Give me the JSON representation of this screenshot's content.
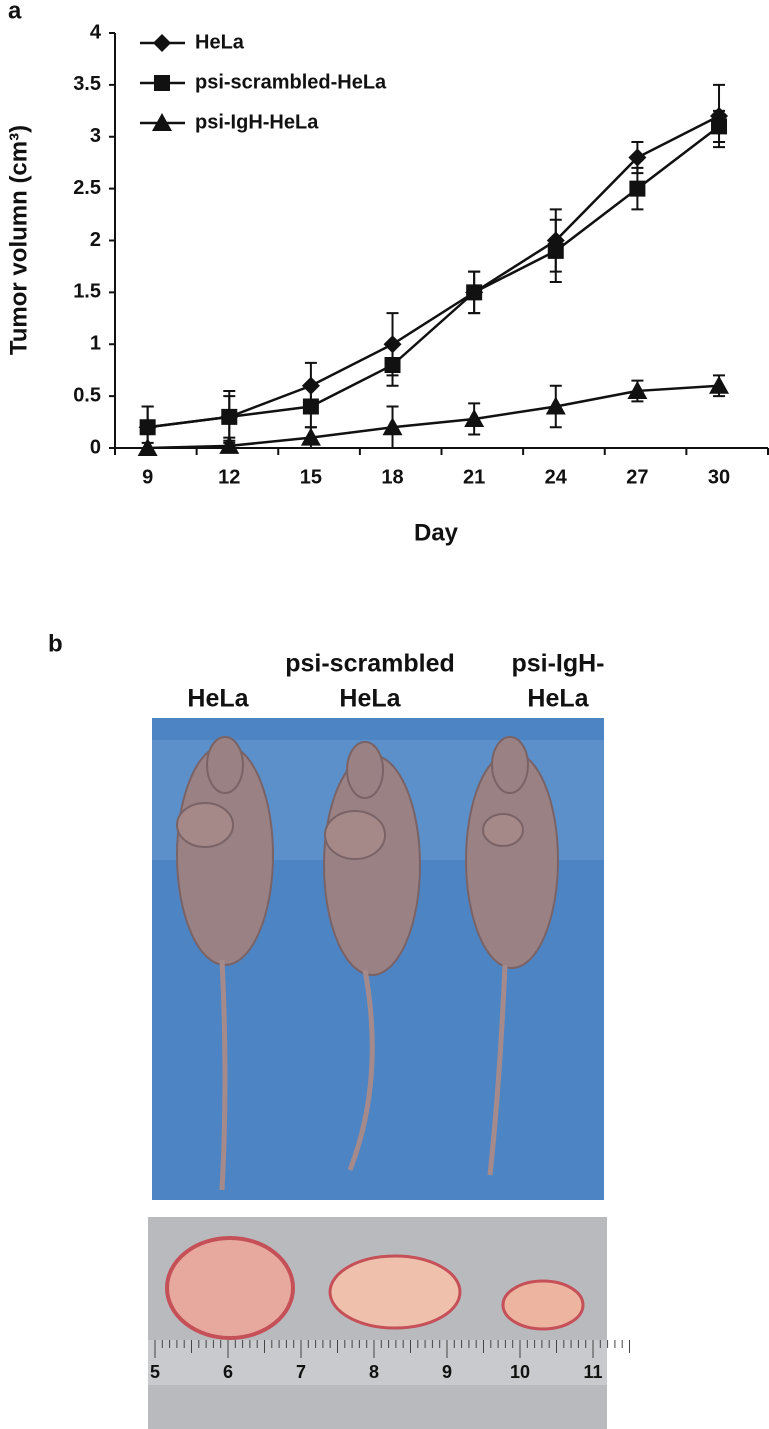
{
  "chart_data": {
    "type": "line",
    "title": "a",
    "x_label": "Day",
    "y_label": "Tumor volumn (cm³)",
    "categories": [
      "9",
      "12",
      "15",
      "18",
      "21",
      "24",
      "27",
      "30"
    ],
    "series": [
      {
        "name": "HeLa",
        "color": "#111111",
        "marker": "diamond",
        "values": [
          0.2,
          0.3,
          0.6,
          1.0,
          1.5,
          2.0,
          2.8,
          3.2
        ],
        "errors": [
          0.2,
          0.25,
          0.22,
          0.3,
          0.2,
          0.3,
          0.15,
          0.3
        ]
      },
      {
        "name": "psi-scrambled-HeLa",
        "color": "#111111",
        "marker": "square",
        "values": [
          0.2,
          0.3,
          0.4,
          0.8,
          1.5,
          1.9,
          2.5,
          3.1
        ],
        "errors": [
          0.2,
          0.2,
          0.2,
          0.2,
          0.2,
          0.3,
          0.2,
          0.15
        ]
      },
      {
        "name": "psi-IgH-HeLa",
        "color": "#111111",
        "marker": "triangle",
        "values": [
          0,
          0.02,
          0.1,
          0.2,
          0.28,
          0.4,
          0.55,
          0.6
        ],
        "errors": [
          0.05,
          0.05,
          0.1,
          0.2,
          0.15,
          0.2,
          0.1,
          0.1
        ]
      }
    ],
    "ylim": [
      0,
      4
    ],
    "yticks": [
      0,
      0.5,
      1,
      1.5,
      2,
      2.5,
      3,
      3.5,
      4
    ],
    "legend": "upper-left",
    "grid": false
  },
  "panel_b": {
    "label": "b",
    "groups": [
      [
        "HeLa"
      ],
      [
        "psi-scrambled",
        "HeLa"
      ],
      [
        "psi-IgH-",
        "HeLa"
      ]
    ],
    "ruler_labels": [
      "5",
      "6",
      "7",
      "8",
      "9",
      "10",
      "11"
    ]
  }
}
